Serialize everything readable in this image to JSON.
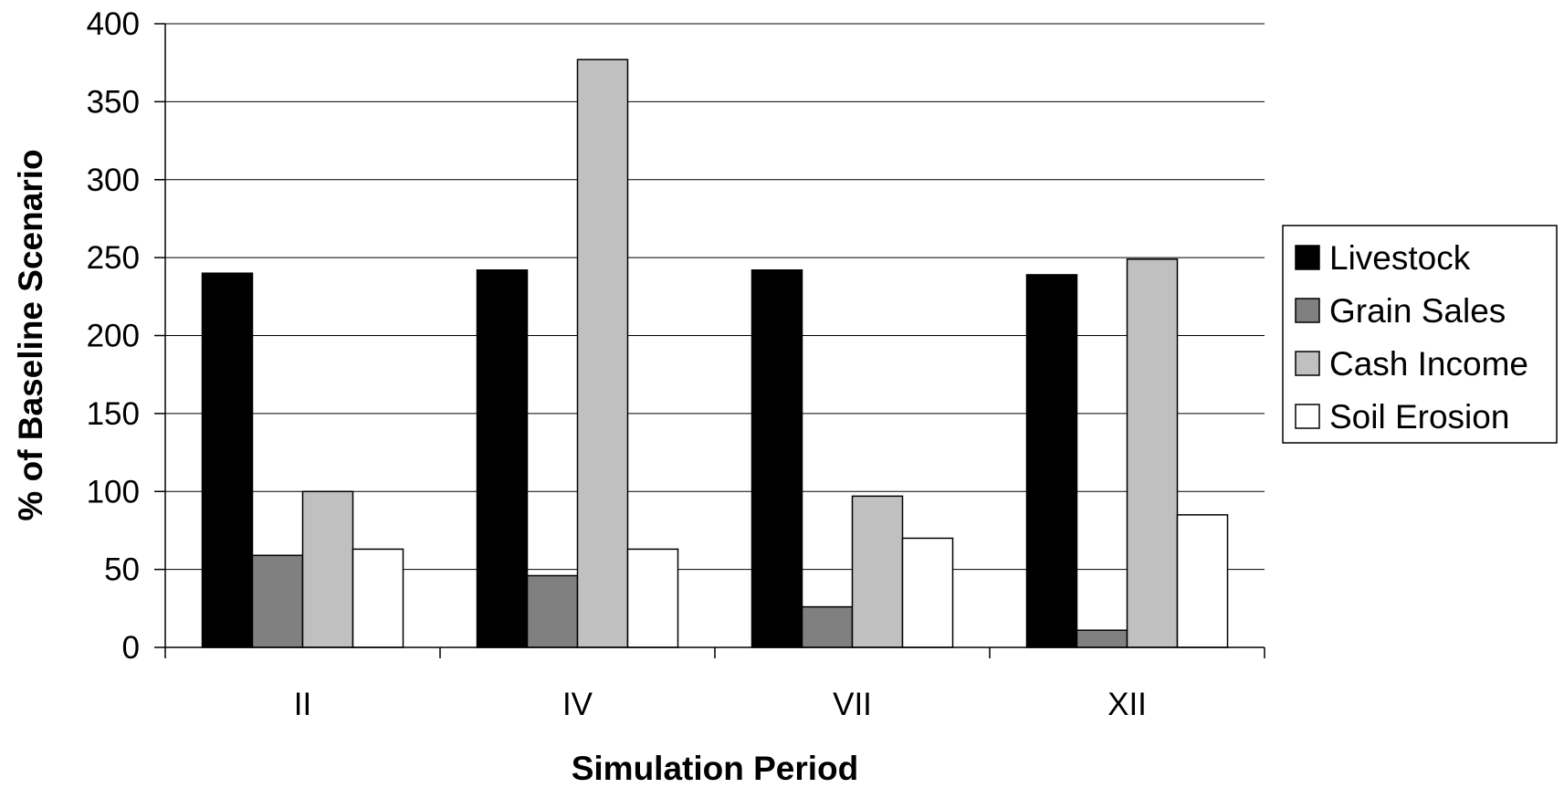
{
  "chart_data": {
    "type": "bar",
    "title": "",
    "xlabel": "Simulation Period",
    "ylabel": "% of Baseline Scenario",
    "ylim": [
      0,
      400
    ],
    "yticks": [
      0,
      50,
      100,
      150,
      200,
      250,
      300,
      350,
      400
    ],
    "grid": true,
    "legend_position": "right",
    "categories": [
      "II",
      "IV",
      "VII",
      "XII"
    ],
    "series": [
      {
        "name": "Livestock",
        "color": "#000000",
        "values": [
          240,
          242,
          242,
          239
        ]
      },
      {
        "name": "Grain Sales",
        "color": "#808080",
        "values": [
          59,
          46,
          26,
          11
        ]
      },
      {
        "name": "Cash Income",
        "color": "#c0c0c0",
        "values": [
          100,
          377,
          97,
          249
        ]
      },
      {
        "name": "Soil Erosion",
        "color": "#ffffff",
        "values": [
          63,
          63,
          70,
          85
        ]
      }
    ]
  }
}
